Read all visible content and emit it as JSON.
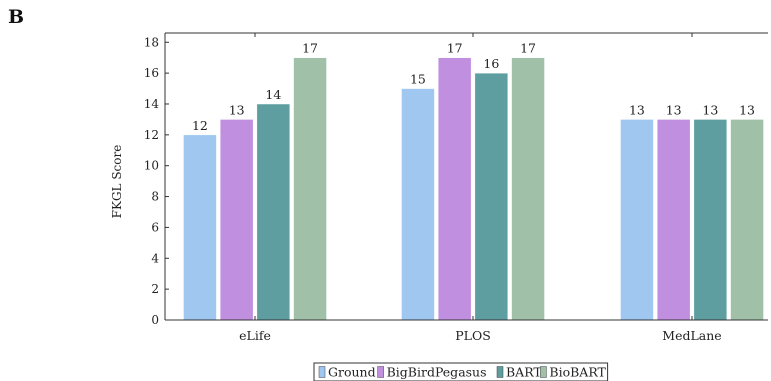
{
  "panel_label": "B",
  "chart_data": {
    "type": "bar",
    "title": "",
    "xlabel": "",
    "ylabel": "FKGL Score",
    "ylim": [
      0,
      18.6
    ],
    "yticks": [
      0,
      2,
      4,
      6,
      8,
      10,
      12,
      14,
      16,
      18
    ],
    "categories": [
      "eLife",
      "PLOS",
      "MedLane"
    ],
    "series": [
      {
        "name": "Ground",
        "color": "#9fc7f0",
        "values": [
          12,
          15,
          13
        ]
      },
      {
        "name": "BigBirdPegasus",
        "color": "#c08fe0",
        "values": [
          13,
          17,
          13
        ]
      },
      {
        "name": "BART",
        "color": "#5f9ea0",
        "values": [
          14,
          16,
          13
        ]
      },
      {
        "name": "BioBART",
        "color": "#a0c0a8",
        "values": [
          17,
          17,
          13
        ]
      }
    ],
    "data_labels": true,
    "grid": false,
    "legend_position": "bottom-center"
  }
}
